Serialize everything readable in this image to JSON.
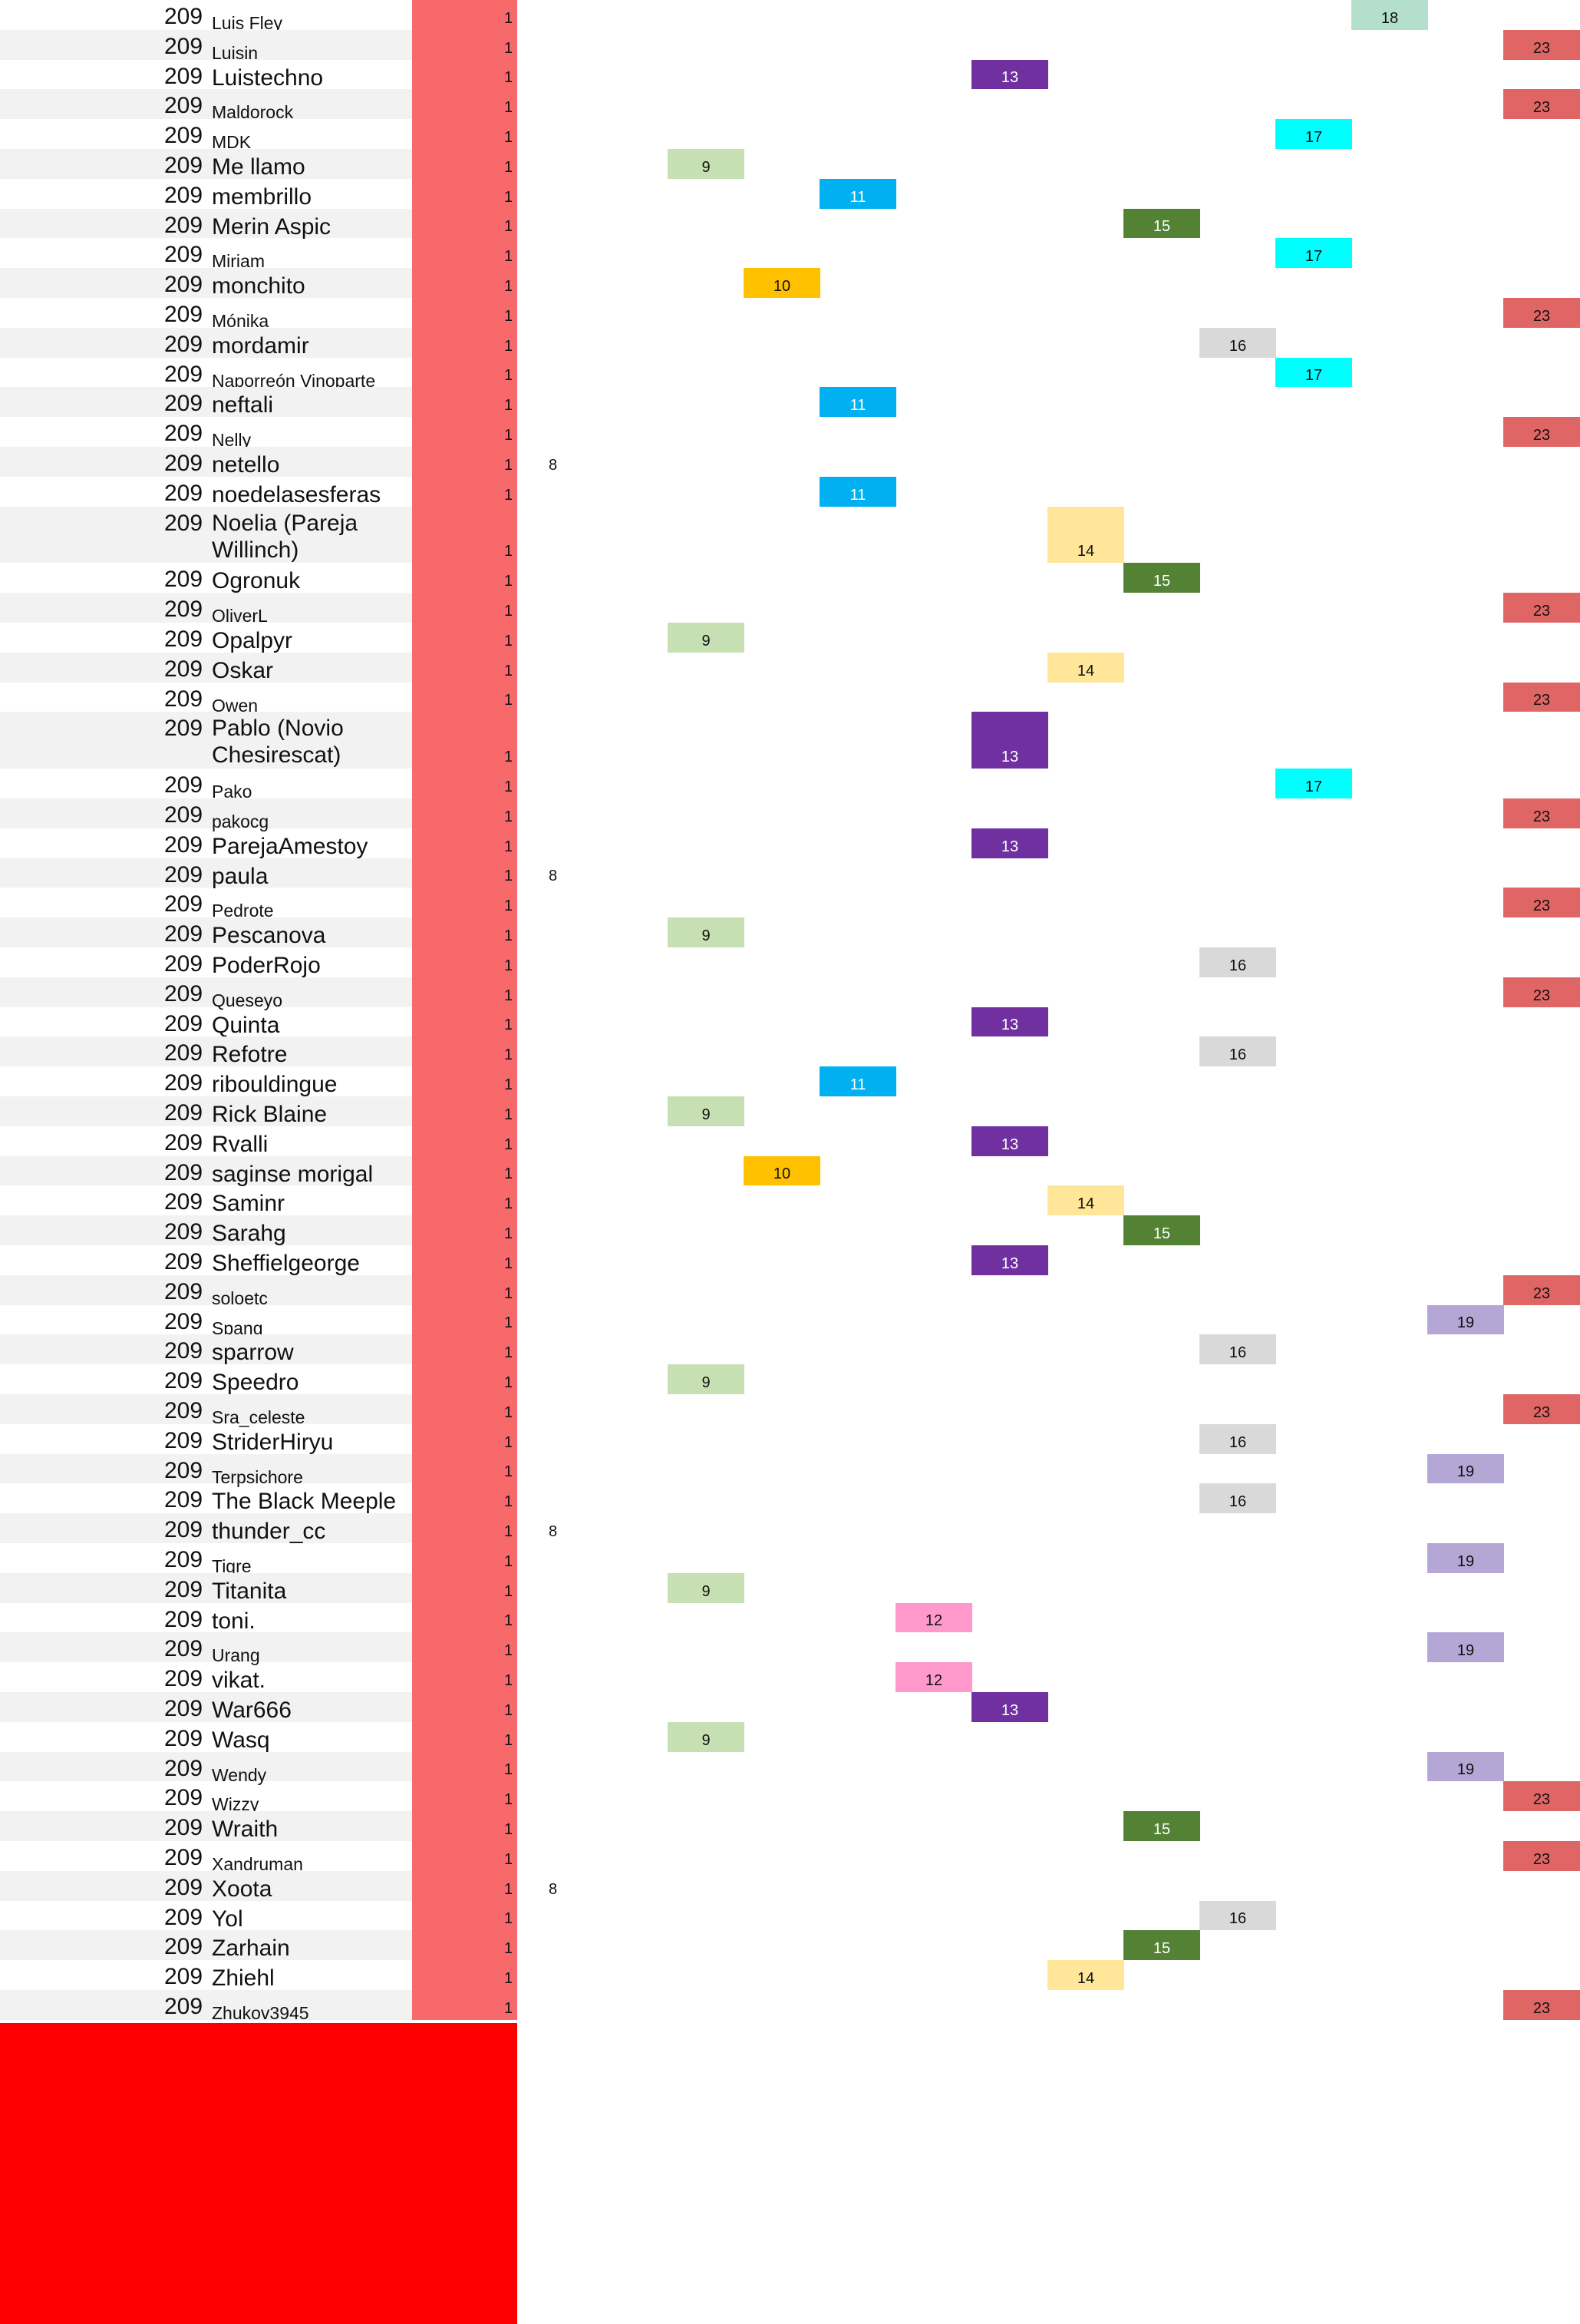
{
  "colors": {
    "row_band": "#f2f2f2",
    "count_column": "#f8696b",
    "footer_block": "#ff0000",
    "col8": "transparent",
    "col9": "#c6e0b4",
    "col10": "#ffc000",
    "col11": "#00b0f0",
    "col12": "#ff99cc",
    "col13": "#7030a0",
    "col14": "#ffe699",
    "col15": "#548235",
    "col16": "#d9d9d9",
    "col17": "#00ffff",
    "col18": "#b4dfcd",
    "col19": "#b4a7d6",
    "col23": "#e06666"
  },
  "rows": [
    {
      "pos": "209",
      "name": "Luis Fley",
      "count": "1",
      "val": "18",
      "small": true
    },
    {
      "pos": "209",
      "name": "Luisin",
      "count": "1",
      "val": "23",
      "small": true
    },
    {
      "pos": "209",
      "name": "Luistechno",
      "count": "1",
      "val": "13"
    },
    {
      "pos": "209",
      "name": "Maldorock",
      "count": "1",
      "val": "23",
      "small": true
    },
    {
      "pos": "209",
      "name": "MDK",
      "count": "1",
      "val": "17",
      "small": true
    },
    {
      "pos": "209",
      "name": "Me llamo",
      "count": "1",
      "val": "9"
    },
    {
      "pos": "209",
      "name": "membrillo",
      "count": "1",
      "val": "11"
    },
    {
      "pos": "209",
      "name": "Merin Aspic",
      "count": "1",
      "val": "15"
    },
    {
      "pos": "209",
      "name": "Miriam",
      "count": "1",
      "val": "17",
      "small": true
    },
    {
      "pos": "209",
      "name": "monchito",
      "count": "1",
      "val": "10"
    },
    {
      "pos": "209",
      "name": "Mónika",
      "count": "1",
      "val": "23",
      "small": true
    },
    {
      "pos": "209",
      "name": "mordamir",
      "count": "1",
      "val": "16"
    },
    {
      "pos": "209",
      "name": "Naporreón Vinoparte",
      "count": "1",
      "val": "17",
      "small": true
    },
    {
      "pos": "209",
      "name": "neftali",
      "count": "1",
      "val": "11"
    },
    {
      "pos": "209",
      "name": "Nelly",
      "count": "1",
      "val": "23",
      "small": true
    },
    {
      "pos": "209",
      "name": "netello",
      "count": "1",
      "val": "8"
    },
    {
      "pos": "209",
      "name": "noedelasesferas",
      "count": "1",
      "val": "11"
    },
    {
      "pos": "209",
      "name": "Noelia (Pareja Willinch)",
      "count": "1",
      "val": "14",
      "tall": true
    },
    {
      "pos": "209",
      "name": "Ogronuk",
      "count": "1",
      "val": "15"
    },
    {
      "pos": "209",
      "name": "OliverL",
      "count": "1",
      "val": "23",
      "small": true
    },
    {
      "pos": "209",
      "name": "Opalpyr",
      "count": "1",
      "val": "9"
    },
    {
      "pos": "209",
      "name": "Oskar",
      "count": "1",
      "val": "14"
    },
    {
      "pos": "209",
      "name": "Owen",
      "count": "1",
      "val": "23",
      "small": true
    },
    {
      "pos": "209",
      "name": "Pablo (Novio Chesirescat)",
      "count": "1",
      "val": "13",
      "tall": true
    },
    {
      "pos": "209",
      "name": "Pako",
      "count": "1",
      "val": "17",
      "small": true
    },
    {
      "pos": "209",
      "name": "pakocg",
      "count": "1",
      "val": "23",
      "small": true
    },
    {
      "pos": "209",
      "name": "ParejaAmestoy",
      "count": "1",
      "val": "13"
    },
    {
      "pos": "209",
      "name": "paula",
      "count": "1",
      "val": "8"
    },
    {
      "pos": "209",
      "name": "Pedrote",
      "count": "1",
      "val": "23",
      "small": true
    },
    {
      "pos": "209",
      "name": "Pescanova",
      "count": "1",
      "val": "9"
    },
    {
      "pos": "209",
      "name": "PoderRojo",
      "count": "1",
      "val": "16"
    },
    {
      "pos": "209",
      "name": "Queseyo",
      "count": "1",
      "val": "23",
      "small": true
    },
    {
      "pos": "209",
      "name": "Quinta",
      "count": "1",
      "val": "13"
    },
    {
      "pos": "209",
      "name": "Refotre",
      "count": "1",
      "val": "16"
    },
    {
      "pos": "209",
      "name": "ribouldingue",
      "count": "1",
      "val": "11"
    },
    {
      "pos": "209",
      "name": "Rick Blaine",
      "count": "1",
      "val": "9"
    },
    {
      "pos": "209",
      "name": "Rvalli",
      "count": "1",
      "val": "13"
    },
    {
      "pos": "209",
      "name": "saginse morigal",
      "count": "1",
      "val": "10"
    },
    {
      "pos": "209",
      "name": "Saminr",
      "count": "1",
      "val": "14"
    },
    {
      "pos": "209",
      "name": "Sarahg",
      "count": "1",
      "val": "15"
    },
    {
      "pos": "209",
      "name": "Sheffielgeorge",
      "count": "1",
      "val": "13"
    },
    {
      "pos": "209",
      "name": "soloetc",
      "count": "1",
      "val": "23",
      "small": true
    },
    {
      "pos": "209",
      "name": "Spang",
      "count": "1",
      "val": "19",
      "small": true
    },
    {
      "pos": "209",
      "name": "sparrow",
      "count": "1",
      "val": "16"
    },
    {
      "pos": "209",
      "name": "Speedro",
      "count": "1",
      "val": "9"
    },
    {
      "pos": "209",
      "name": "Sra_celeste",
      "count": "1",
      "val": "23",
      "small": true
    },
    {
      "pos": "209",
      "name": "StriderHiryu",
      "count": "1",
      "val": "16"
    },
    {
      "pos": "209",
      "name": "Terpsichore",
      "count": "1",
      "val": "19",
      "small": true
    },
    {
      "pos": "209",
      "name": "The Black Meeple",
      "count": "1",
      "val": "16"
    },
    {
      "pos": "209",
      "name": "thunder_cc",
      "count": "1",
      "val": "8"
    },
    {
      "pos": "209",
      "name": "Tigre",
      "count": "1",
      "val": "19",
      "small": true
    },
    {
      "pos": "209",
      "name": "Titanita",
      "count": "1",
      "val": "9"
    },
    {
      "pos": "209",
      "name": "toni.",
      "count": "1",
      "val": "12"
    },
    {
      "pos": "209",
      "name": "Urang",
      "count": "1",
      "val": "19",
      "small": true
    },
    {
      "pos": "209",
      "name": "vikat.",
      "count": "1",
      "val": "12"
    },
    {
      "pos": "209",
      "name": "War666",
      "count": "1",
      "val": "13"
    },
    {
      "pos": "209",
      "name": "Wasq",
      "count": "1",
      "val": "9"
    },
    {
      "pos": "209",
      "name": "Wendy",
      "count": "1",
      "val": "19",
      "small": true
    },
    {
      "pos": "209",
      "name": "Wizzy",
      "count": "1",
      "val": "23",
      "small": true
    },
    {
      "pos": "209",
      "name": "Wraith",
      "count": "1",
      "val": "15"
    },
    {
      "pos": "209",
      "name": "Xandruman",
      "count": "1",
      "val": "23",
      "small": true
    },
    {
      "pos": "209",
      "name": "Xoota",
      "count": "1",
      "val": "8"
    },
    {
      "pos": "209",
      "name": "Yol",
      "count": "1",
      "val": "16"
    },
    {
      "pos": "209",
      "name": "Zarhain",
      "count": "1",
      "val": "15"
    },
    {
      "pos": "209",
      "name": "Zhiehl",
      "count": "1",
      "val": "14"
    },
    {
      "pos": "209",
      "name": "Zhukov3945",
      "count": "1",
      "val": "23",
      "small": true
    }
  ]
}
